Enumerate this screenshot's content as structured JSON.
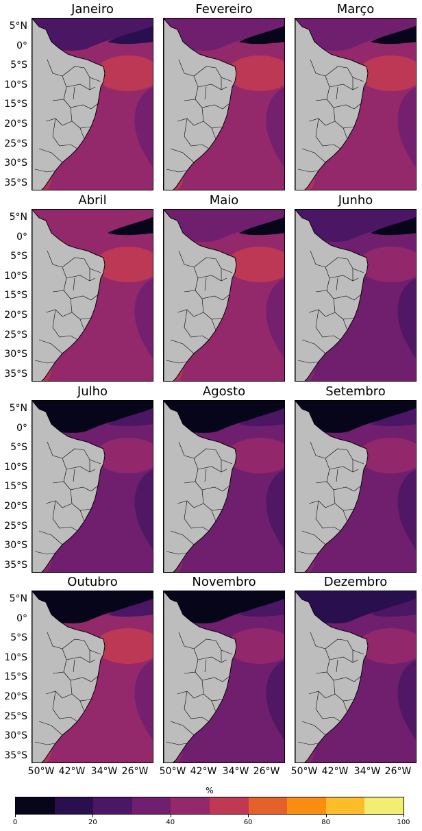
{
  "months": [
    {
      "name": "Janeiro",
      "tone": [
        2,
        1,
        4,
        5
      ]
    },
    {
      "name": "Fevereiro",
      "tone": [
        3,
        0,
        4,
        5
      ]
    },
    {
      "name": "Março",
      "tone": [
        3,
        0,
        4,
        5
      ]
    },
    {
      "name": "Abril",
      "tone": [
        4,
        0,
        4,
        5
      ]
    },
    {
      "name": "Maio",
      "tone": [
        3,
        0,
        4,
        5
      ]
    },
    {
      "name": "Junho",
      "tone": [
        2,
        0,
        3,
        4
      ]
    },
    {
      "name": "Julho",
      "tone": [
        0,
        2,
        3,
        4
      ]
    },
    {
      "name": "Agosto",
      "tone": [
        0,
        2,
        3,
        4
      ]
    },
    {
      "name": "Setembro",
      "tone": [
        0,
        2,
        3,
        4
      ]
    },
    {
      "name": "Outubro",
      "tone": [
        0,
        2,
        4,
        5
      ]
    },
    {
      "name": "Novembro",
      "tone": [
        0,
        2,
        3,
        4
      ]
    },
    {
      "name": "Dezembro",
      "tone": [
        1,
        2,
        3,
        4
      ]
    }
  ],
  "lat_labels": [
    "5°N",
    "0°",
    "5°S",
    "10°S",
    "15°S",
    "20°S",
    "25°S",
    "30°S",
    "35°S"
  ],
  "lon_labels": [
    "50°W",
    "42°W",
    "34°W",
    "26°W"
  ],
  "colorbar": {
    "unit": "%",
    "ticks": [
      "0",
      "20",
      "40",
      "60",
      "80",
      "100"
    ],
    "colors": [
      "#07051a",
      "#2a0f4e",
      "#4b1664",
      "#6f1f6e",
      "#93296a",
      "#bf3953",
      "#e5612c",
      "#f88d11",
      "#fbbd2a",
      "#f2ee72"
    ]
  },
  "land_color": "#bdbdbd"
}
